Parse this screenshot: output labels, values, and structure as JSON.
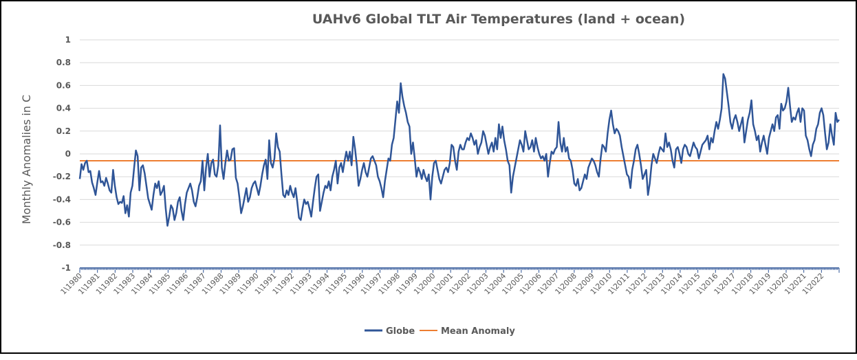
{
  "chart_data": {
    "type": "line",
    "title": "UAHv6 Global TLT Air Temperatures (land + ocean)",
    "xlabel": "",
    "ylabel": "Monthly Anomalies in C",
    "ylim": [
      -1,
      1
    ],
    "yticks": [
      "1",
      "0.8",
      "0.6",
      "0.4",
      "0.2",
      "0",
      "-0.2",
      "-0.4",
      "-0.6",
      "-0.8",
      "-1"
    ],
    "x_start_year": 1980,
    "x_tick_labels": [
      "1\\1980",
      "1\\1981",
      "1\\1982",
      "1\\1983",
      "1\\1984",
      "1\\1985",
      "1\\1986",
      "1\\1987",
      "1\\1988",
      "1\\1989",
      "1\\1990",
      "1\\1991",
      "1\\1992",
      "1\\1993",
      "1\\1994",
      "1\\1995",
      "1\\1996",
      "1\\1997",
      "1\\1998",
      "1\\1999",
      "1\\2000",
      "1\\2001",
      "1\\2002",
      "1\\2003",
      "1\\2004",
      "1\\2005",
      "1\\2006",
      "1\\2007",
      "1\\2008",
      "1\\2009",
      "1\\2010",
      "1\\2011",
      "1\\2012",
      "1\\2013",
      "1\\2014",
      "1\\2015",
      "1\\2016",
      "1\\2017",
      "1\\2018",
      "1\\2019",
      "1\\2020",
      "1\\2021",
      "1\\2022"
    ],
    "grid": true,
    "legend_position": "bottom-center",
    "series": [
      {
        "name": "Globe",
        "color": "#2F5597",
        "values": [
          -0.22,
          -0.09,
          -0.14,
          -0.08,
          -0.06,
          -0.16,
          -0.15,
          -0.25,
          -0.3,
          -0.36,
          -0.25,
          -0.15,
          -0.25,
          -0.24,
          -0.28,
          -0.21,
          -0.26,
          -0.32,
          -0.34,
          -0.14,
          -0.28,
          -0.38,
          -0.44,
          -0.42,
          -0.43,
          -0.37,
          -0.52,
          -0.45,
          -0.55,
          -0.34,
          -0.28,
          -0.12,
          0.03,
          -0.02,
          -0.32,
          -0.12,
          -0.1,
          -0.17,
          -0.28,
          -0.39,
          -0.44,
          -0.49,
          -0.36,
          -0.26,
          -0.3,
          -0.24,
          -0.36,
          -0.33,
          -0.28,
          -0.48,
          -0.63,
          -0.55,
          -0.45,
          -0.48,
          -0.58,
          -0.52,
          -0.42,
          -0.38,
          -0.5,
          -0.58,
          -0.44,
          -0.34,
          -0.3,
          -0.26,
          -0.32,
          -0.42,
          -0.46,
          -0.38,
          -0.28,
          -0.24,
          -0.06,
          -0.32,
          -0.12,
          0.0,
          -0.2,
          -0.08,
          -0.05,
          -0.18,
          -0.2,
          -0.1,
          0.25,
          -0.12,
          -0.22,
          -0.08,
          0.03,
          -0.06,
          -0.05,
          0.04,
          0.05,
          -0.21,
          -0.26,
          -0.38,
          -0.52,
          -0.46,
          -0.38,
          -0.3,
          -0.42,
          -0.38,
          -0.3,
          -0.26,
          -0.24,
          -0.3,
          -0.36,
          -0.28,
          -0.18,
          -0.1,
          -0.05,
          -0.22,
          0.12,
          -0.08,
          -0.12,
          -0.04,
          0.18,
          0.06,
          0.02,
          -0.18,
          -0.36,
          -0.38,
          -0.32,
          -0.36,
          -0.28,
          -0.34,
          -0.38,
          -0.3,
          -0.42,
          -0.56,
          -0.58,
          -0.48,
          -0.4,
          -0.44,
          -0.42,
          -0.48,
          -0.55,
          -0.42,
          -0.3,
          -0.2,
          -0.18,
          -0.5,
          -0.42,
          -0.34,
          -0.28,
          -0.3,
          -0.24,
          -0.32,
          -0.2,
          -0.14,
          -0.06,
          -0.26,
          -0.12,
          -0.08,
          -0.16,
          -0.06,
          0.02,
          -0.06,
          0.02,
          -0.1,
          0.15,
          0.04,
          -0.1,
          -0.28,
          -0.22,
          -0.14,
          -0.08,
          -0.16,
          -0.2,
          -0.12,
          -0.04,
          -0.02,
          -0.06,
          -0.1,
          -0.2,
          -0.24,
          -0.3,
          -0.38,
          -0.24,
          -0.14,
          -0.04,
          -0.06,
          0.08,
          0.14,
          0.3,
          0.46,
          0.36,
          0.62,
          0.5,
          0.42,
          0.36,
          0.28,
          0.24,
          0.0,
          0.1,
          -0.04,
          -0.2,
          -0.12,
          -0.16,
          -0.22,
          -0.14,
          -0.2,
          -0.24,
          -0.18,
          -0.4,
          -0.2,
          -0.08,
          -0.06,
          -0.14,
          -0.22,
          -0.26,
          -0.2,
          -0.14,
          -0.12,
          -0.16,
          -0.08,
          0.08,
          0.06,
          -0.06,
          -0.14,
          0.02,
          0.08,
          0.04,
          0.04,
          0.1,
          0.14,
          0.12,
          0.18,
          0.14,
          0.08,
          0.12,
          0.0,
          0.06,
          0.1,
          0.2,
          0.16,
          0.08,
          0.0,
          0.06,
          0.1,
          0.02,
          0.14,
          0.04,
          0.26,
          0.14,
          0.24,
          0.12,
          0.04,
          -0.06,
          -0.1,
          -0.34,
          -0.2,
          -0.12,
          -0.04,
          0.04,
          0.12,
          0.08,
          0.02,
          0.2,
          0.12,
          0.04,
          0.06,
          0.12,
          0.02,
          0.14,
          0.06,
          0.0,
          -0.04,
          -0.02,
          -0.06,
          0.0,
          -0.2,
          -0.08,
          0.02,
          0.0,
          0.04,
          0.06,
          0.28,
          0.1,
          0.02,
          0.14,
          0.02,
          0.06,
          -0.04,
          -0.06,
          -0.14,
          -0.26,
          -0.28,
          -0.22,
          -0.32,
          -0.3,
          -0.24,
          -0.18,
          -0.22,
          -0.12,
          -0.08,
          -0.04,
          -0.06,
          -0.1,
          -0.16,
          -0.2,
          -0.04,
          0.08,
          0.06,
          0.02,
          0.18,
          0.3,
          0.38,
          0.26,
          0.18,
          0.22,
          0.2,
          0.16,
          0.06,
          -0.02,
          -0.1,
          -0.18,
          -0.2,
          -0.3,
          -0.14,
          -0.06,
          0.04,
          0.08,
          0.0,
          -0.1,
          -0.22,
          -0.18,
          -0.14,
          -0.36,
          -0.26,
          -0.1,
          0.0,
          -0.04,
          -0.08,
          0.0,
          0.06,
          0.04,
          0.02,
          0.18,
          0.06,
          0.1,
          0.04,
          -0.06,
          -0.12,
          0.04,
          0.06,
          0.0,
          -0.08,
          0.04,
          0.08,
          0.06,
          0.0,
          -0.02,
          0.04,
          0.1,
          0.06,
          0.04,
          -0.04,
          0.02,
          0.08,
          0.1,
          0.12,
          0.16,
          0.04,
          0.14,
          0.1,
          0.2,
          0.28,
          0.22,
          0.3,
          0.4,
          0.7,
          0.66,
          0.54,
          0.42,
          0.28,
          0.22,
          0.3,
          0.34,
          0.28,
          0.2,
          0.26,
          0.32,
          0.1,
          0.2,
          0.3,
          0.36,
          0.47,
          0.26,
          0.2,
          0.12,
          0.16,
          0.02,
          0.1,
          0.16,
          0.08,
          0.0,
          0.14,
          0.2,
          0.26,
          0.2,
          0.32,
          0.34,
          0.22,
          0.44,
          0.38,
          0.4,
          0.46,
          0.58,
          0.42,
          0.28,
          0.32,
          0.3,
          0.36,
          0.4,
          0.28,
          0.4,
          0.38,
          0.16,
          0.12,
          0.04,
          -0.02,
          0.08,
          0.12,
          0.22,
          0.26,
          0.36,
          0.4,
          0.34,
          0.18,
          0.04,
          0.1,
          0.26,
          0.16,
          0.08,
          0.36,
          0.28,
          0.3
        ]
      },
      {
        "name": "Mean Anomaly",
        "color": "#ED7D31",
        "values": [
          -0.06
        ]
      }
    ]
  },
  "legend": {
    "globe_label": "Globe",
    "mean_label": "Mean Anomaly"
  }
}
